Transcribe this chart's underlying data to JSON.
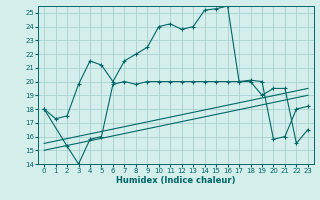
{
  "xlabel": "Humidex (Indice chaleur)",
  "bg_color": "#d4eeec",
  "grid_color": "#a0cccc",
  "line_color": "#006666",
  "xlim": [
    0,
    23
  ],
  "ylim": [
    14,
    25
  ],
  "yticks": [
    14,
    15,
    16,
    17,
    18,
    19,
    20,
    21,
    22,
    23,
    24,
    25
  ],
  "xticks": [
    0,
    1,
    2,
    3,
    4,
    5,
    6,
    7,
    8,
    9,
    10,
    11,
    12,
    13,
    14,
    15,
    16,
    17,
    18,
    19,
    20,
    21,
    22,
    23
  ],
  "line1_x": [
    0,
    1,
    2,
    3,
    4,
    5,
    6,
    7,
    8,
    9,
    10,
    11,
    12,
    13,
    14,
    15,
    16,
    17,
    18,
    19,
    20,
    21,
    22,
    23
  ],
  "line1_y": [
    18,
    17.3,
    17.5,
    19.8,
    21.5,
    21.2,
    20.0,
    21.5,
    22.0,
    22.5,
    24.0,
    24.2,
    23.8,
    24.0,
    25.2,
    25.3,
    25.5,
    20.0,
    20.1,
    20.0,
    15.8,
    16.0,
    18.0,
    18.2
  ],
  "line2_x": [
    0,
    2,
    3,
    4,
    5,
    6,
    7,
    8,
    9,
    10,
    11,
    12,
    13,
    14,
    15,
    16,
    17,
    18,
    19,
    20,
    21,
    22,
    23
  ],
  "line2_y": [
    18,
    15.3,
    14.0,
    15.8,
    16.0,
    19.8,
    20.0,
    19.8,
    20.0,
    20.0,
    20.0,
    20.0,
    20.0,
    20.0,
    20.0,
    20.0,
    20.0,
    20.0,
    19.0,
    19.5,
    19.5,
    15.5,
    16.5
  ],
  "line3_x": [
    0,
    23
  ],
  "line3_y": [
    15.5,
    19.5
  ],
  "line4_x": [
    0,
    23
  ],
  "line4_y": [
    15.0,
    19.0
  ]
}
